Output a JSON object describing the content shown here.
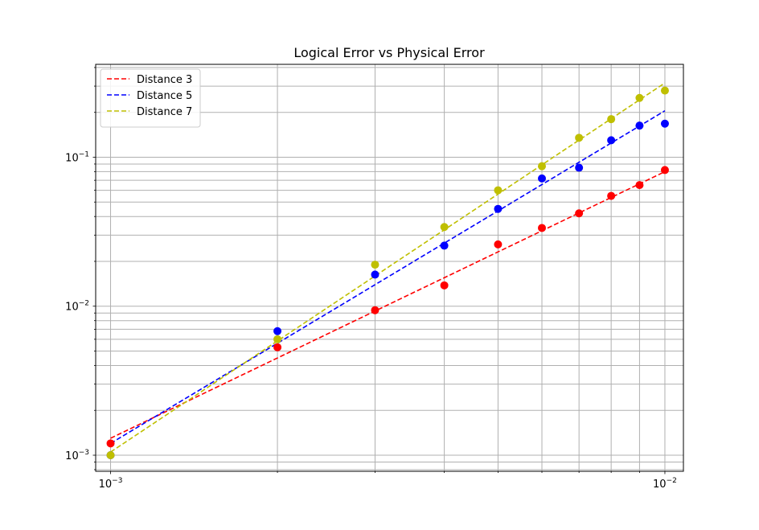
{
  "chart_data": {
    "type": "scatter",
    "title": "Logical Error vs Physical Error",
    "xlabel": "",
    "ylabel": "",
    "xscale": "log",
    "yscale": "log",
    "xlim": [
      0.00094,
      0.0108
    ],
    "ylim": [
      0.00078,
      0.42
    ],
    "grid": "both (major and minor)",
    "legend_position": "upper left",
    "x_ticks": [
      {
        "value": 0.001,
        "base": "10",
        "exp": "−3"
      },
      {
        "value": 0.01,
        "base": "10",
        "exp": "−2"
      }
    ],
    "y_ticks": [
      {
        "value": 0.001,
        "base": "10",
        "exp": "−3"
      },
      {
        "value": 0.01,
        "base": "10",
        "exp": "−2"
      },
      {
        "value": 0.1,
        "base": "10",
        "exp": "−1"
      }
    ],
    "series": [
      {
        "name": "Distance 3",
        "color": "#ff0000",
        "points": [
          [
            0.001,
            0.0012
          ],
          [
            0.002,
            0.0053
          ],
          [
            0.003,
            0.0094
          ],
          [
            0.004,
            0.0138
          ],
          [
            0.005,
            0.026
          ],
          [
            0.006,
            0.0335
          ],
          [
            0.007,
            0.042
          ],
          [
            0.008,
            0.055
          ],
          [
            0.009,
            0.065
          ],
          [
            0.01,
            0.082
          ]
        ],
        "fit": [
          [
            0.001,
            0.0013
          ],
          [
            0.01,
            0.08
          ]
        ]
      },
      {
        "name": "Distance 5",
        "color": "#0000ff",
        "points": [
          [
            0.001,
            0.001
          ],
          [
            0.002,
            0.0068
          ],
          [
            0.003,
            0.0163
          ],
          [
            0.004,
            0.0255
          ],
          [
            0.005,
            0.045
          ],
          [
            0.006,
            0.072
          ],
          [
            0.007,
            0.085
          ],
          [
            0.008,
            0.13
          ],
          [
            0.009,
            0.163
          ],
          [
            0.01,
            0.168
          ]
        ],
        "fit": [
          [
            0.001,
            0.0012
          ],
          [
            0.01,
            0.205
          ]
        ]
      },
      {
        "name": "Distance 7",
        "color": "#bfbf00",
        "points": [
          [
            0.001,
            0.001
          ],
          [
            0.002,
            0.006
          ],
          [
            0.003,
            0.019
          ],
          [
            0.004,
            0.034
          ],
          [
            0.005,
            0.06
          ],
          [
            0.006,
            0.087
          ],
          [
            0.007,
            0.135
          ],
          [
            0.008,
            0.18
          ],
          [
            0.009,
            0.25
          ],
          [
            0.01,
            0.28
          ]
        ],
        "fit": [
          [
            0.001,
            0.00105
          ],
          [
            0.01,
            0.315
          ]
        ]
      }
    ]
  }
}
